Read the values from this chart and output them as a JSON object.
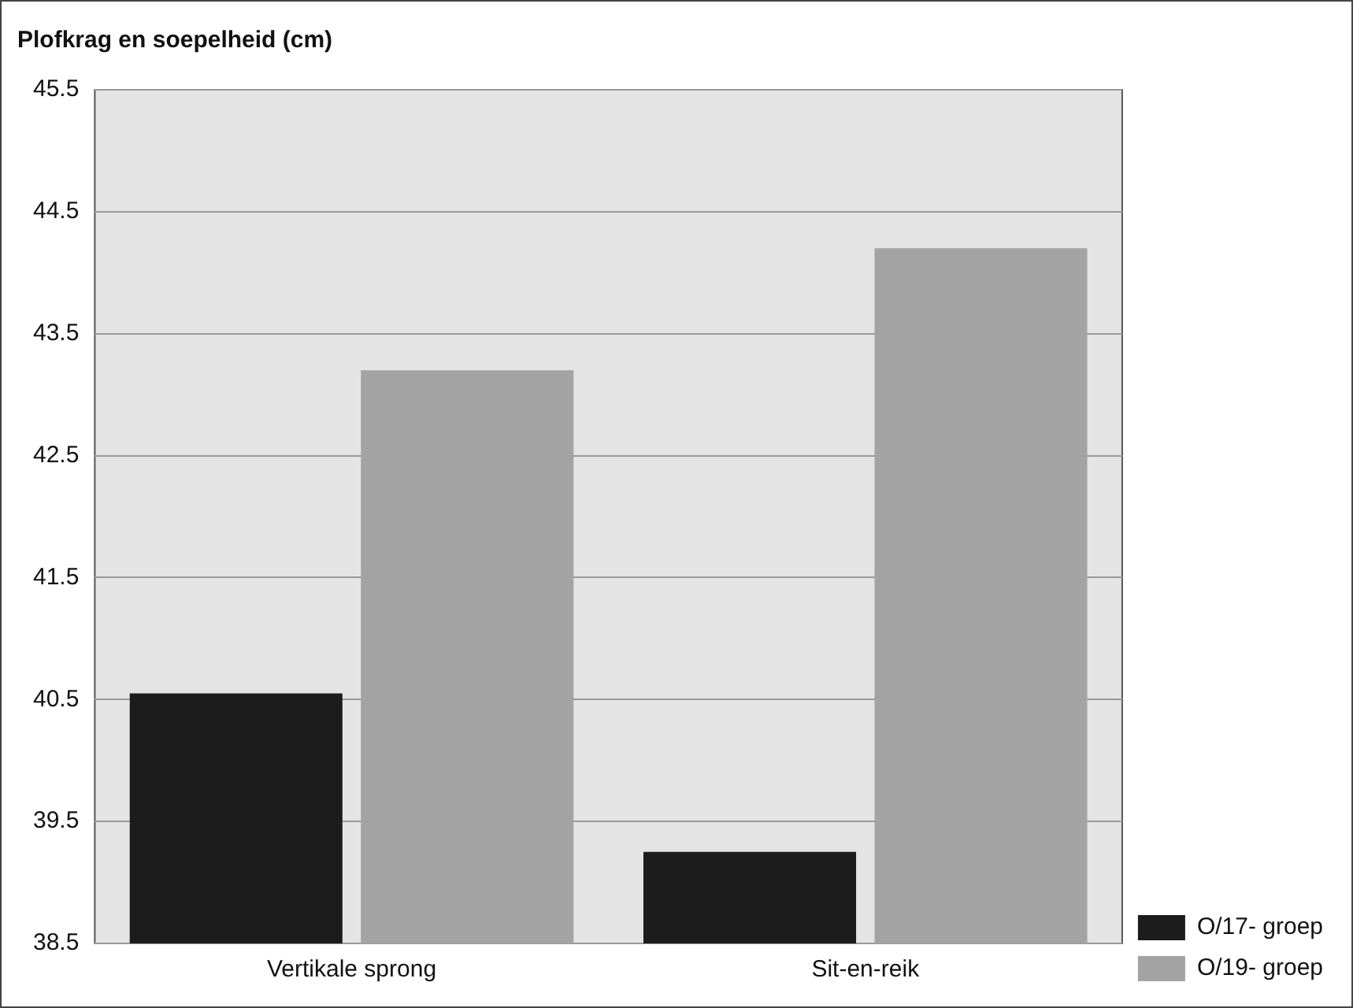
{
  "chart_data": {
    "type": "bar",
    "title": "Plofkrag en soepelheid (cm)",
    "categories": [
      "Vertikale sprong",
      "Sit-en-reik"
    ],
    "series": [
      {
        "name": "O/17- groep",
        "color": "#1c1c1c",
        "values": [
          40.55,
          39.25
        ]
      },
      {
        "name": "O/19- groep",
        "color": "#a3a3a3",
        "values": [
          43.2,
          44.2
        ]
      }
    ],
    "ylim": [
      38.5,
      45.5
    ],
    "yticks": [
      38.5,
      39.5,
      40.5,
      41.5,
      42.5,
      43.5,
      44.5,
      45.5
    ],
    "grid": "y",
    "legend": "bottom right"
  }
}
